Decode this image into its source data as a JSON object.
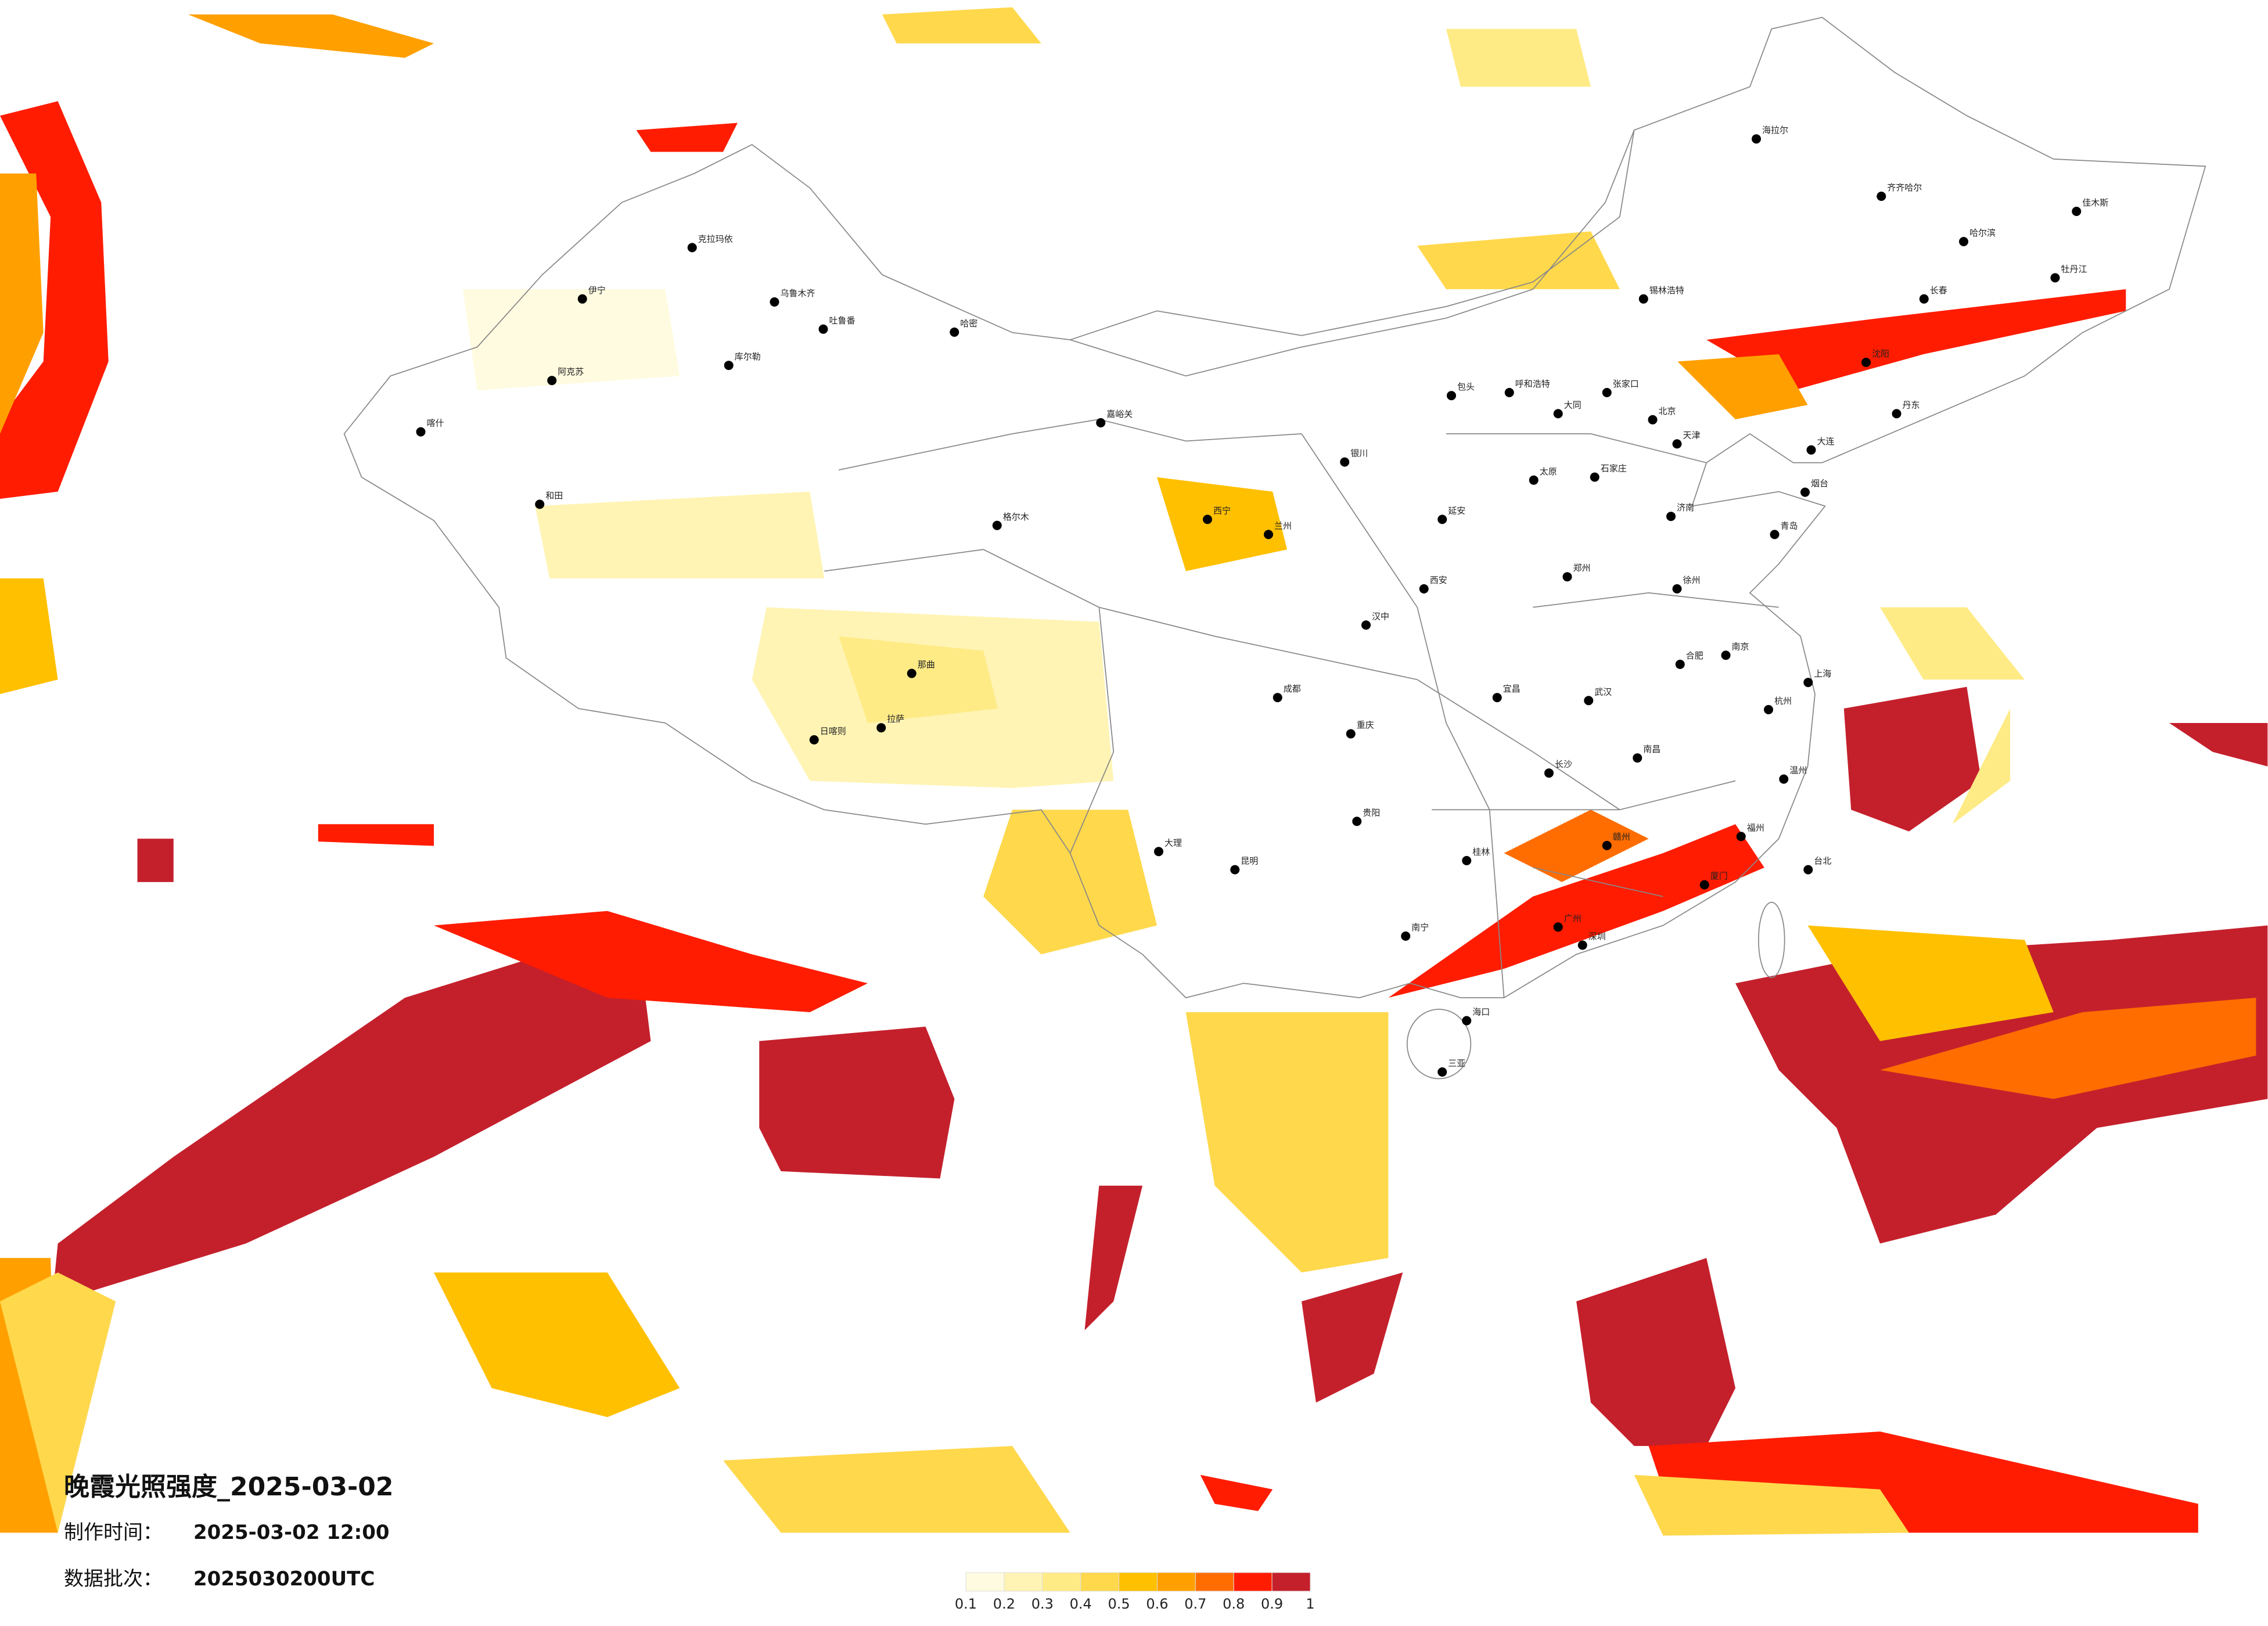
{
  "header": {
    "title": "晚霞光照强度_2025-03-02",
    "produced_label": "制作时间：",
    "produced": "2025-03-02 12:00",
    "batch_label": "数据批次：",
    "batch": "2025030200UTC"
  },
  "legend": {
    "colors": [
      "#fffbe0",
      "#fff4b4",
      "#ffeb86",
      "#ffd84c",
      "#ffc000",
      "#ffa000",
      "#ff6c00",
      "#ff1c00",
      "#c4202c"
    ],
    "ticks": [
      0.1,
      0.2,
      0.3,
      0.4,
      0.5,
      0.6,
      0.7,
      0.8,
      0.9,
      1
    ]
  },
  "cities": [
    {
      "name": "北京",
      "lon": 116.4,
      "lat": 39.9
    },
    {
      "name": "天津",
      "lon": 117.2,
      "lat": 39.1
    },
    {
      "name": "上海",
      "lon": 121.5,
      "lat": 31.2
    },
    {
      "name": "重庆",
      "lon": 106.5,
      "lat": 29.5
    },
    {
      "name": "哈尔滨",
      "lon": 126.6,
      "lat": 45.8
    },
    {
      "name": "长春",
      "lon": 125.3,
      "lat": 43.9
    },
    {
      "name": "沈阳",
      "lon": 123.4,
      "lat": 41.8
    },
    {
      "name": "呼和浩特",
      "lon": 111.7,
      "lat": 40.8
    },
    {
      "name": "石家庄",
      "lon": 114.5,
      "lat": 38.0
    },
    {
      "name": "太原",
      "lon": 112.5,
      "lat": 37.9
    },
    {
      "name": "济南",
      "lon": 117.0,
      "lat": 36.7
    },
    {
      "name": "郑州",
      "lon": 113.6,
      "lat": 34.7
    },
    {
      "name": "西安",
      "lon": 108.9,
      "lat": 34.3
    },
    {
      "name": "兰州",
      "lon": 103.8,
      "lat": 36.1
    },
    {
      "name": "西宁",
      "lon": 101.8,
      "lat": 36.6
    },
    {
      "name": "银川",
      "lon": 106.3,
      "lat": 38.5
    },
    {
      "name": "乌鲁木齐",
      "lon": 87.6,
      "lat": 43.8
    },
    {
      "name": "拉萨",
      "lon": 91.1,
      "lat": 29.7
    },
    {
      "name": "成都",
      "lon": 104.1,
      "lat": 30.7
    },
    {
      "name": "贵阳",
      "lon": 106.7,
      "lat": 26.6
    },
    {
      "name": "昆明",
      "lon": 102.7,
      "lat": 25.0
    },
    {
      "name": "南宁",
      "lon": 108.3,
      "lat": 22.8
    },
    {
      "name": "广州",
      "lon": 113.3,
      "lat": 23.1
    },
    {
      "name": "福州",
      "lon": 119.3,
      "lat": 26.1
    },
    {
      "name": "南昌",
      "lon": 115.9,
      "lat": 28.7
    },
    {
      "name": "长沙",
      "lon": 113.0,
      "lat": 28.2
    },
    {
      "name": "武汉",
      "lon": 114.3,
      "lat": 30.6
    },
    {
      "name": "合肥",
      "lon": 117.3,
      "lat": 31.8
    },
    {
      "name": "南京",
      "lon": 118.8,
      "lat": 32.1
    },
    {
      "name": "杭州",
      "lon": 120.2,
      "lat": 30.3
    },
    {
      "name": "海口",
      "lon": 110.3,
      "lat": 20.0
    },
    {
      "name": "三亚",
      "lon": 109.5,
      "lat": 18.3
    },
    {
      "name": "台北",
      "lon": 121.5,
      "lat": 25.0
    },
    {
      "name": "喀什",
      "lon": 76.0,
      "lat": 39.5
    },
    {
      "name": "和田",
      "lon": 79.9,
      "lat": 37.1
    },
    {
      "name": "阿克苏",
      "lon": 80.3,
      "lat": 41.2
    },
    {
      "name": "伊宁",
      "lon": 81.3,
      "lat": 43.9
    },
    {
      "name": "克拉玛依",
      "lon": 84.9,
      "lat": 45.6
    },
    {
      "name": "哈密",
      "lon": 93.5,
      "lat": 42.8
    },
    {
      "name": "吐鲁番",
      "lon": 89.2,
      "lat": 42.9
    },
    {
      "name": "库尔勒",
      "lon": 86.1,
      "lat": 41.7
    },
    {
      "name": "格尔木",
      "lon": 94.9,
      "lat": 36.4
    },
    {
      "name": "日喀则",
      "lon": 88.9,
      "lat": 29.3
    },
    {
      "name": "那曲",
      "lon": 92.1,
      "lat": 31.5
    },
    {
      "name": "齐齐哈尔",
      "lon": 123.9,
      "lat": 47.3
    },
    {
      "name": "海拉尔",
      "lon": 119.8,
      "lat": 49.2
    },
    {
      "name": "佳木斯",
      "lon": 130.3,
      "lat": 46.8
    },
    {
      "name": "牡丹江",
      "lon": 129.6,
      "lat": 44.6
    },
    {
      "name": "大连",
      "lon": 121.6,
      "lat": 38.9
    },
    {
      "name": "青岛",
      "lon": 120.4,
      "lat": 36.1
    },
    {
      "name": "厦门",
      "lon": 118.1,
      "lat": 24.5
    },
    {
      "name": "深圳",
      "lon": 114.1,
      "lat": 22.5
    },
    {
      "name": "桂林",
      "lon": 110.3,
      "lat": 25.3
    },
    {
      "name": "包头",
      "lon": 109.8,
      "lat": 40.7
    },
    {
      "name": "张家口",
      "lon": 114.9,
      "lat": 40.8
    },
    {
      "name": "大同",
      "lon": 113.3,
      "lat": 40.1
    },
    {
      "name": "延安",
      "lon": 109.5,
      "lat": 36.6
    },
    {
      "name": "汉中",
      "lon": 107.0,
      "lat": 33.1
    },
    {
      "name": "宜昌",
      "lon": 111.3,
      "lat": 30.7
    },
    {
      "name": "赣州",
      "lon": 114.9,
      "lat": 25.8
    },
    {
      "name": "温州",
      "lon": 120.7,
      "lat": 28.0
    },
    {
      "name": "徐州",
      "lon": 117.2,
      "lat": 34.3
    },
    {
      "name": "烟台",
      "lon": 121.4,
      "lat": 37.5
    },
    {
      "name": "丹东",
      "lon": 124.4,
      "lat": 40.1
    },
    {
      "name": "锡林浩特",
      "lon": 116.1,
      "lat": 43.9
    },
    {
      "name": "嘉峪关",
      "lon": 98.3,
      "lat": 39.8
    },
    {
      "name": "大理",
      "lon": 100.2,
      "lat": 25.6
    }
  ]
}
